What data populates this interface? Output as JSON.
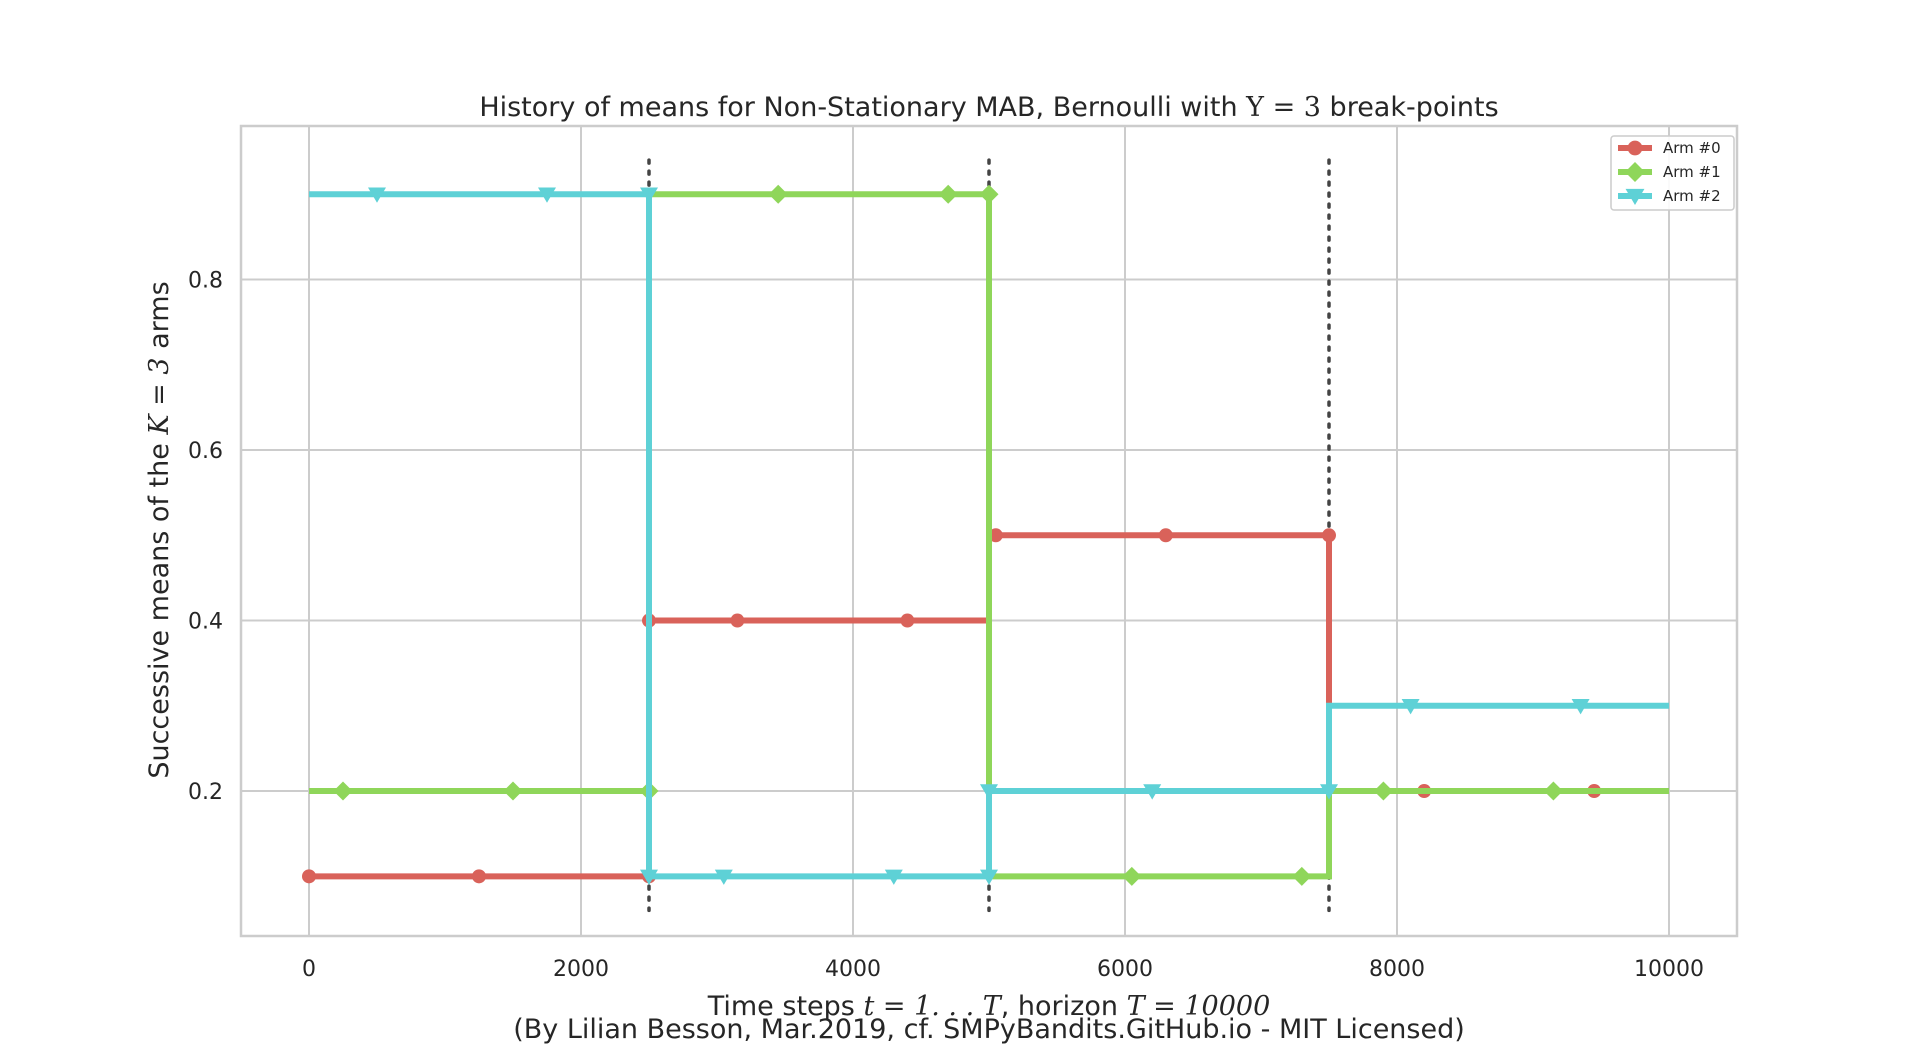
{
  "chart_data": {
    "type": "line",
    "title": {
      "prefix": "History of means for Non-Stationary MAB, Bernoulli with ",
      "math": "Υ = 3",
      "suffix": " break-points"
    },
    "xlabel": {
      "prefix": "Time steps ",
      "math1": "t = 1. . . T",
      "middle": ", horizon ",
      "math2": "T = 10000"
    },
    "ylabel": {
      "prefix": "Successive means of the ",
      "math": "K = 3",
      "suffix": " arms"
    },
    "credit": "(By Lilian Besson, Mar.2019, cf. SMPyBandits.GitHub.io - MIT Licensed)",
    "xlim": [
      -500,
      10500
    ],
    "ylim": [
      0.03,
      0.98
    ],
    "xticks": [
      0,
      2000,
      4000,
      6000,
      8000,
      10000
    ],
    "xtick_labels": [
      "0",
      "2000",
      "4000",
      "6000",
      "8000",
      "10000"
    ],
    "yticks": [
      0.2,
      0.4,
      0.6,
      0.8
    ],
    "ytick_labels": [
      "0.2",
      "0.4",
      "0.6",
      "0.8"
    ],
    "grid": true,
    "legend_position": "top-right",
    "break_points": [
      2500,
      5000,
      7500
    ],
    "break_range": [
      0.06,
      0.94
    ],
    "series": [
      {
        "name": "Arm #0",
        "color": "#d9625a",
        "marker": "circle",
        "x": [
          0,
          2500,
          2500,
          5000,
          5000,
          7500,
          7500,
          10000
        ],
        "y": [
          0.1,
          0.1,
          0.4,
          0.4,
          0.5,
          0.5,
          0.2,
          0.2
        ],
        "markers_x": [
          0,
          1250,
          2500,
          2500,
          3150,
          4400,
          5050,
          6300,
          7500,
          8200,
          9450
        ],
        "markers_y": [
          0.1,
          0.1,
          0.1,
          0.4,
          0.4,
          0.4,
          0.5,
          0.5,
          0.5,
          0.2,
          0.2
        ]
      },
      {
        "name": "Arm #1",
        "color": "#8fd65a",
        "marker": "diamond",
        "x": [
          0,
          2500,
          2500,
          5000,
          5000,
          7500,
          7500,
          10000
        ],
        "y": [
          0.2,
          0.2,
          0.9,
          0.9,
          0.1,
          0.1,
          0.2,
          0.2
        ],
        "markers_x": [
          250,
          1500,
          2500,
          3450,
          4700,
          5000,
          6050,
          7300,
          7900,
          9150
        ],
        "markers_y": [
          0.2,
          0.2,
          0.2,
          0.9,
          0.9,
          0.9,
          0.1,
          0.1,
          0.2,
          0.2
        ]
      },
      {
        "name": "Arm #2",
        "color": "#5ed1d6",
        "marker": "triangle-down",
        "x": [
          0,
          2500,
          2500,
          5000,
          5000,
          7500,
          7500,
          10000
        ],
        "y": [
          0.9,
          0.9,
          0.1,
          0.1,
          0.2,
          0.2,
          0.3,
          0.3
        ],
        "markers_x": [
          500,
          1750,
          2500,
          2500,
          3050,
          4300,
          5000,
          5000,
          6200,
          7500,
          8100,
          9350
        ],
        "markers_y": [
          0.9,
          0.9,
          0.9,
          0.1,
          0.1,
          0.1,
          0.1,
          0.2,
          0.2,
          0.2,
          0.3,
          0.3
        ]
      }
    ]
  }
}
